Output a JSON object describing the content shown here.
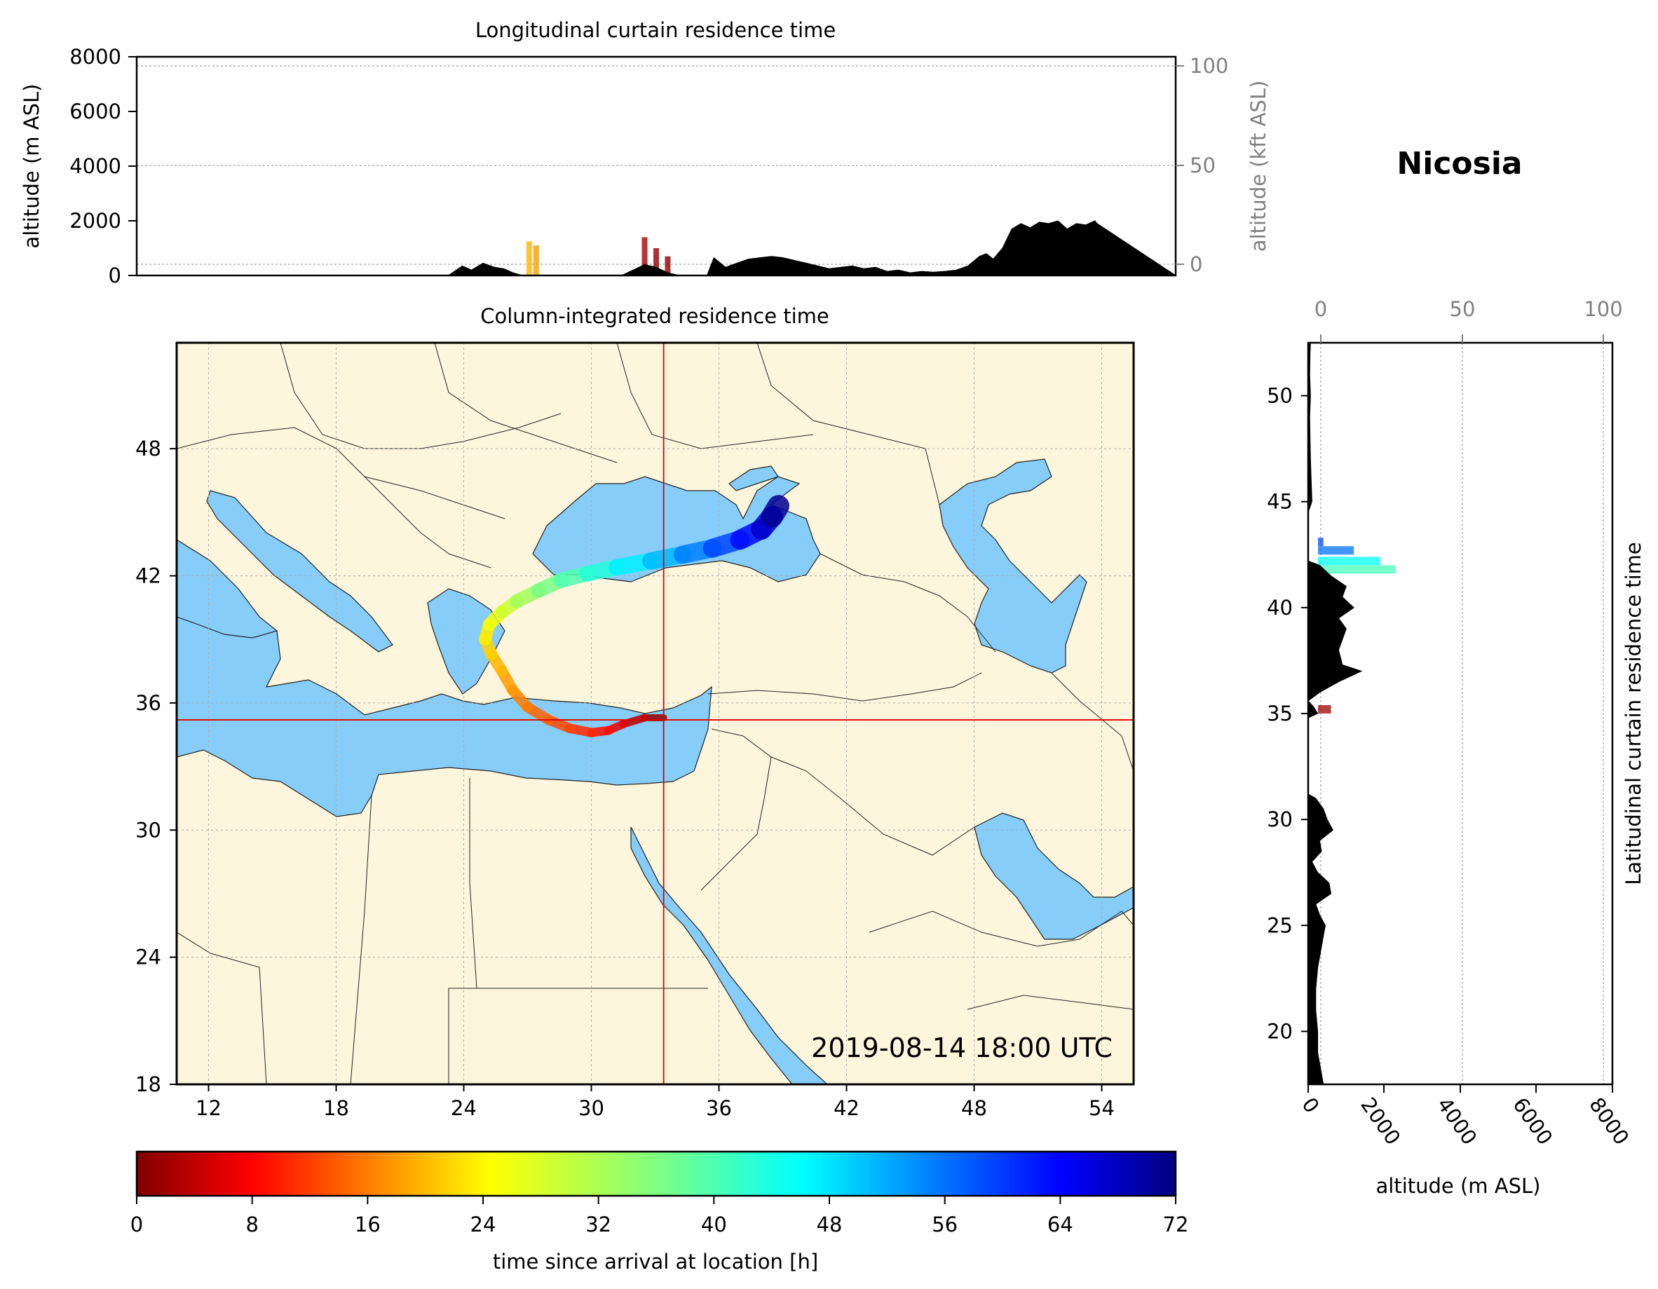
{
  "location": "Nicosia",
  "timestamp": "2019-08-14 18:00 UTC",
  "colors": {
    "land": "#fdf6dc",
    "sea": "#87cdf9",
    "terrain": "#000000",
    "crosshair": "#e00000",
    "secondary_axis": "#808080"
  },
  "chart_data": [
    {
      "id": "longitudinal",
      "type": "area",
      "title": "Longitudinal curtain residence time",
      "ylabel": "altitude (m ASL)",
      "ylabel_right": "altitude (kft ASL)",
      "ylim": [
        0,
        8000
      ],
      "yticks": [
        "0",
        "2000",
        "4000",
        "6000",
        "8000"
      ],
      "yticks_right": [
        "0",
        "50",
        "100"
      ],
      "xlim": [
        10.5,
        55.5
      ],
      "terrain": {
        "x": [
          10.5,
          24.0,
          24.6,
          25.0,
          25.5,
          26.0,
          26.4,
          26.8,
          27.2,
          27.6,
          28.0,
          29.5,
          30.5,
          31.0,
          31.5,
          32.0,
          32.5,
          33.0,
          33.5,
          34.0,
          34.5,
          35.0,
          35.2,
          35.5,
          36.0,
          36.5,
          37.0,
          37.5,
          38.0,
          38.5,
          39.0,
          39.5,
          40.0,
          40.5,
          41.0,
          41.5,
          42.0,
          42.5,
          43.0,
          43.5,
          44.0,
          44.5,
          45.0,
          45.5,
          46.0,
          46.5,
          47.0,
          47.3,
          47.6,
          48.0,
          48.4,
          48.8,
          49.2,
          49.6,
          50.0,
          50.4,
          50.8,
          51.2,
          51.6,
          52.0,
          52.1,
          55.5
        ],
        "elevation_m": [
          0,
          0,
          350,
          200,
          450,
          300,
          250,
          100,
          0,
          0,
          0,
          0,
          0,
          0,
          0,
          200,
          400,
          300,
          100,
          0,
          0,
          0,
          0,
          650,
          300,
          450,
          600,
          650,
          700,
          650,
          550,
          450,
          350,
          250,
          300,
          350,
          250,
          300,
          150,
          200,
          100,
          150,
          120,
          150,
          200,
          350,
          700,
          800,
          600,
          1000,
          1700,
          1900,
          1750,
          1950,
          1900,
          2000,
          1700,
          1900,
          1850,
          2000,
          1900,
          0
        ]
      },
      "residence": [
        {
          "x": 27.5,
          "top_m": 1250,
          "hours": 22
        },
        {
          "x": 27.8,
          "top_m": 1100,
          "hours": 20
        },
        {
          "x": 32.5,
          "top_m": 1400,
          "hours": 3
        },
        {
          "x": 33.0,
          "top_m": 1000,
          "hours": 2
        },
        {
          "x": 33.5,
          "top_m": 700,
          "hours": 1
        }
      ]
    },
    {
      "id": "column",
      "type": "heatmap",
      "title": "Column-integrated residence time",
      "xlim": [
        10.5,
        55.5
      ],
      "ylim": [
        18,
        53
      ],
      "xticks": [
        "12",
        "18",
        "24",
        "30",
        "36",
        "42",
        "48",
        "54"
      ],
      "yticks": [
        "18",
        "24",
        "30",
        "36",
        "42",
        "48"
      ],
      "crosshair": {
        "lon": 33.4,
        "lat": 35.2
      },
      "trajectory": {
        "lon": [
          33.4,
          32.5,
          31.5,
          30.8,
          30.0,
          29.0,
          28.0,
          27.0,
          26.3,
          25.8,
          25.3,
          25.0,
          25.2,
          25.8,
          26.5,
          27.5,
          28.6,
          29.8,
          31.2,
          32.8,
          34.3,
          35.7,
          37.0,
          38.0,
          38.5,
          38.8
        ],
        "lat": [
          35.3,
          35.3,
          35.0,
          34.7,
          34.6,
          34.8,
          35.2,
          35.8,
          36.6,
          37.5,
          38.3,
          39.0,
          39.7,
          40.3,
          40.8,
          41.3,
          41.8,
          42.1,
          42.4,
          42.7,
          43.0,
          43.3,
          43.7,
          44.2,
          44.8,
          45.3
        ],
        "hours": [
          0,
          3,
          6,
          9,
          11,
          13,
          15,
          17,
          19,
          21,
          23,
          25,
          27,
          29,
          32,
          35,
          38,
          41,
          44,
          48,
          52,
          56,
          60,
          65,
          69,
          72
        ]
      }
    },
    {
      "id": "latitudinal",
      "type": "area",
      "title": "Latitudinal curtain residence time",
      "xlabel": "altitude (m ASL)",
      "xlim": [
        0,
        8000
      ],
      "xticks": [
        "0",
        "2000",
        "4000",
        "6000",
        "8000"
      ],
      "xticks_top": [
        "0",
        "50",
        "100"
      ],
      "ylim": [
        17.5,
        52.5
      ],
      "yticks": [
        "20",
        "25",
        "30",
        "35",
        "40",
        "45",
        "50"
      ],
      "terrain": {
        "lat": [
          17.5,
          18.0,
          19.0,
          20.0,
          21.0,
          22.0,
          23.0,
          24.0,
          25.0,
          25.5,
          26.0,
          26.5,
          27.0,
          27.5,
          28.0,
          28.5,
          29.0,
          29.5,
          30.0,
          30.5,
          31.0,
          31.2,
          34.8,
          35.0,
          35.3,
          35.6,
          36.0,
          36.5,
          37.0,
          37.3,
          38.0,
          39.0,
          39.5,
          40.0,
          40.5,
          41.0,
          41.5,
          42.0,
          42.2,
          44.5,
          45.0,
          46.0,
          47.0,
          48.0,
          49.0,
          50.0,
          51.0,
          52.0,
          52.5
        ],
        "elevation_m": [
          400,
          350,
          250,
          250,
          200,
          200,
          250,
          350,
          450,
          300,
          200,
          600,
          550,
          250,
          100,
          350,
          300,
          650,
          500,
          400,
          200,
          0,
          0,
          250,
          150,
          0,
          300,
          800,
          1400,
          900,
          800,
          1000,
          800,
          1200,
          900,
          1000,
          600,
          300,
          0,
          0,
          100,
          80,
          60,
          50,
          40,
          60,
          40,
          50,
          60
        ],
        "note": "elevation keyed to latitude"
      },
      "residence": [
        {
          "lat": 43.1,
          "right_m": 400,
          "hours": 58
        },
        {
          "lat": 42.7,
          "right_m": 1200,
          "hours": 55
        },
        {
          "lat": 42.2,
          "right_m": 1900,
          "hours": 45
        },
        {
          "lat": 41.8,
          "right_m": 2300,
          "hours": 40
        },
        {
          "lat": 35.2,
          "right_m": 600,
          "hours": 2
        }
      ]
    },
    {
      "id": "colorbar",
      "type": "colorbar",
      "label": "time since arrival at location [h]",
      "range": [
        0,
        72
      ],
      "ticks": [
        "0",
        "8",
        "16",
        "24",
        "32",
        "40",
        "48",
        "56",
        "64",
        "72"
      ],
      "colormap": "jet_r"
    }
  ]
}
